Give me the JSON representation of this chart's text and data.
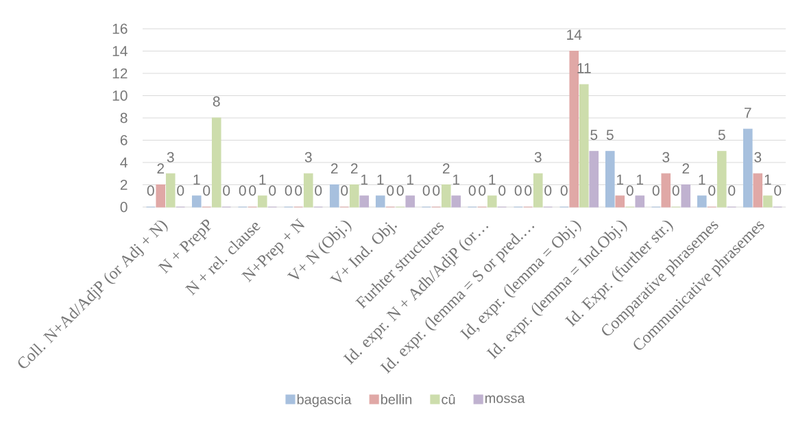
{
  "chart_data": {
    "type": "bar",
    "categories": [
      "Coll. N+Ad/AdjP (or Adj + N)",
      "N + PrepP",
      "N + rel. clause",
      "N+Prep + N",
      "V+ N (Obj.)",
      "V+ Ind. Obj.",
      "Furhter structures",
      "Id. expr. N + Adh/AdjP (or…",
      "Id. expr. (lemma = S or pred.…",
      "Id, expr. (lemma = Obj.)",
      "Id. expr. (lemma = Ind.Obj.)",
      "Id. Expr. (further str.)",
      "Comparative phrasemes",
      "Communicative phrasemes"
    ],
    "series": [
      {
        "name": "bagascia",
        "color": "#a7c0de",
        "values": [
          0,
          1,
          0,
          0,
          2,
          1,
          0,
          0,
          0,
          0,
          5,
          0,
          1,
          7
        ]
      },
      {
        "name": "bellin",
        "color": "#e0a8a6",
        "values": [
          2,
          0,
          0,
          0,
          0,
          0,
          0,
          0,
          0,
          14,
          1,
          3,
          0,
          3
        ]
      },
      {
        "name": "cû",
        "color": "#cdddac",
        "values": [
          3,
          8,
          1,
          3,
          2,
          0,
          2,
          1,
          3,
          11,
          0,
          0,
          5,
          1
        ]
      },
      {
        "name": "mossa",
        "color": "#c0b2d0",
        "values": [
          0,
          0,
          0,
          0,
          1,
          1,
          1,
          0,
          0,
          5,
          1,
          2,
          0,
          0
        ]
      }
    ],
    "ylim": [
      0,
      16
    ],
    "yticks": [
      0,
      2,
      4,
      6,
      8,
      10,
      12,
      14,
      16
    ],
    "grid": "y",
    "legend": "bottom",
    "data_labels": true
  }
}
